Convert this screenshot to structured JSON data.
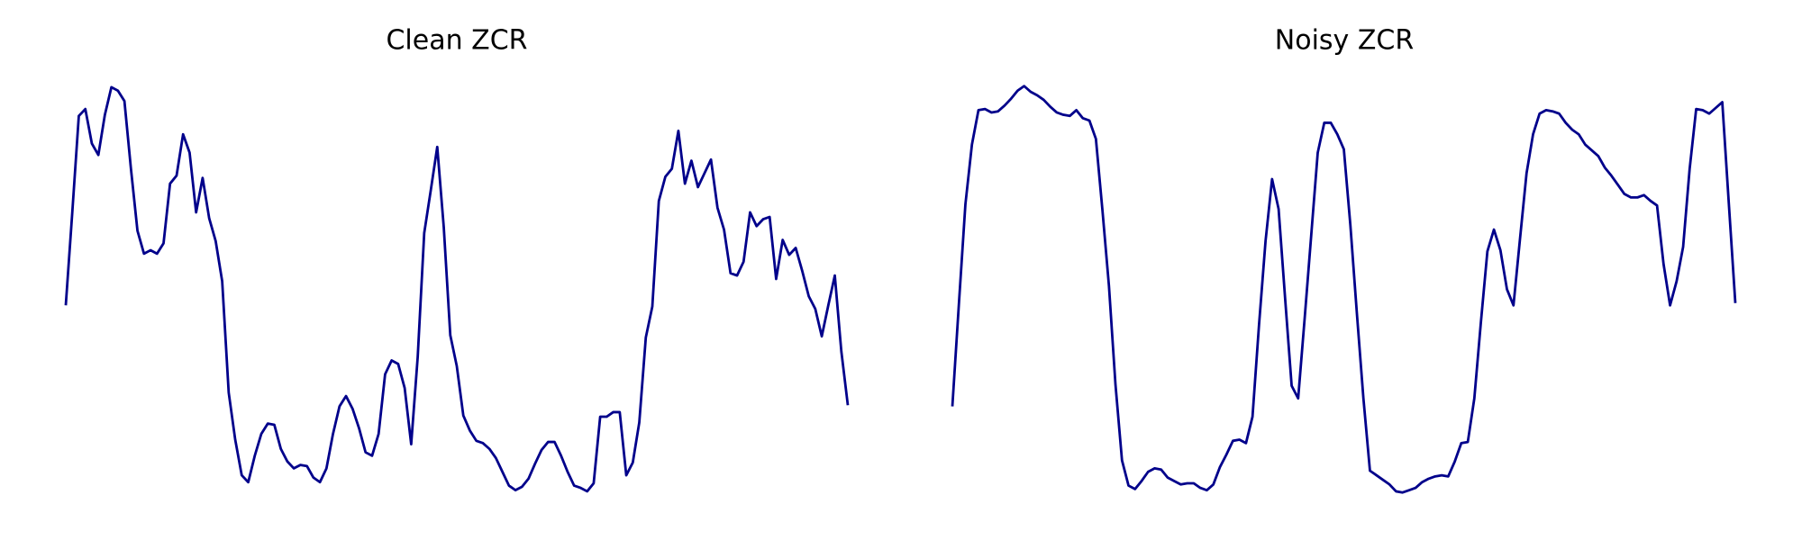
{
  "chart_data": [
    {
      "type": "line",
      "title": "Clean ZCR",
      "color": "#00008b",
      "ylim": [
        0,
        390
      ],
      "values": [
        184,
        265,
        349,
        355,
        325,
        315,
        350,
        374,
        371,
        362,
        303,
        249,
        229,
        232,
        229,
        238,
        290,
        297,
        333,
        317,
        265,
        295,
        260,
        240,
        205,
        108,
        67,
        36,
        30,
        53,
        72,
        81,
        80,
        59,
        48,
        42,
        45,
        44,
        34,
        30,
        42,
        72,
        96,
        105,
        94,
        77,
        56,
        53,
        72,
        124,
        136,
        133,
        112,
        63,
        139,
        247,
        284,
        322,
        252,
        158,
        131,
        88,
        75,
        66,
        64,
        59,
        51,
        39,
        27,
        23,
        26,
        33,
        46,
        58,
        65,
        65,
        53,
        39,
        27,
        25,
        22,
        29,
        87,
        87,
        91,
        91,
        36,
        47,
        82,
        156,
        183,
        275,
        296,
        303,
        336,
        290,
        310,
        287,
        299,
        311,
        269,
        250,
        212,
        210,
        222,
        265,
        253,
        259,
        261,
        207,
        241,
        228,
        234,
        214,
        192,
        181,
        157,
        184,
        210,
        144,
        97
      ]
    },
    {
      "type": "line",
      "title": "Noisy ZCR",
      "color": "#00008b",
      "ylim": [
        0,
        390
      ],
      "values": [
        96,
        185,
        272,
        324,
        354,
        355,
        352,
        353,
        358,
        364,
        371,
        375,
        370,
        367,
        363,
        357,
        352,
        350,
        349,
        354,
        347,
        345,
        329,
        267,
        201,
        115,
        49,
        27,
        24,
        31,
        39,
        42,
        41,
        34,
        31,
        28,
        29,
        29,
        25,
        23,
        28,
        43,
        54,
        66,
        67,
        64,
        87,
        167,
        240,
        294,
        268,
        190,
        114,
        103,
        173,
        245,
        317,
        343,
        343,
        333,
        320,
        254,
        177,
        103,
        40,
        36,
        32,
        28,
        22,
        21,
        23,
        25,
        30,
        33,
        35,
        36,
        35,
        48,
        64,
        65,
        103,
        169,
        231,
        250,
        232,
        198,
        184,
        242,
        299,
        333,
        351,
        354,
        353,
        351,
        343,
        337,
        333,
        324,
        319,
        314,
        304,
        297,
        289,
        281,
        278,
        278,
        280,
        275,
        271,
        220,
        184,
        205,
        235,
        303,
        355,
        354,
        351,
        356,
        361,
        273,
        186
      ]
    }
  ]
}
